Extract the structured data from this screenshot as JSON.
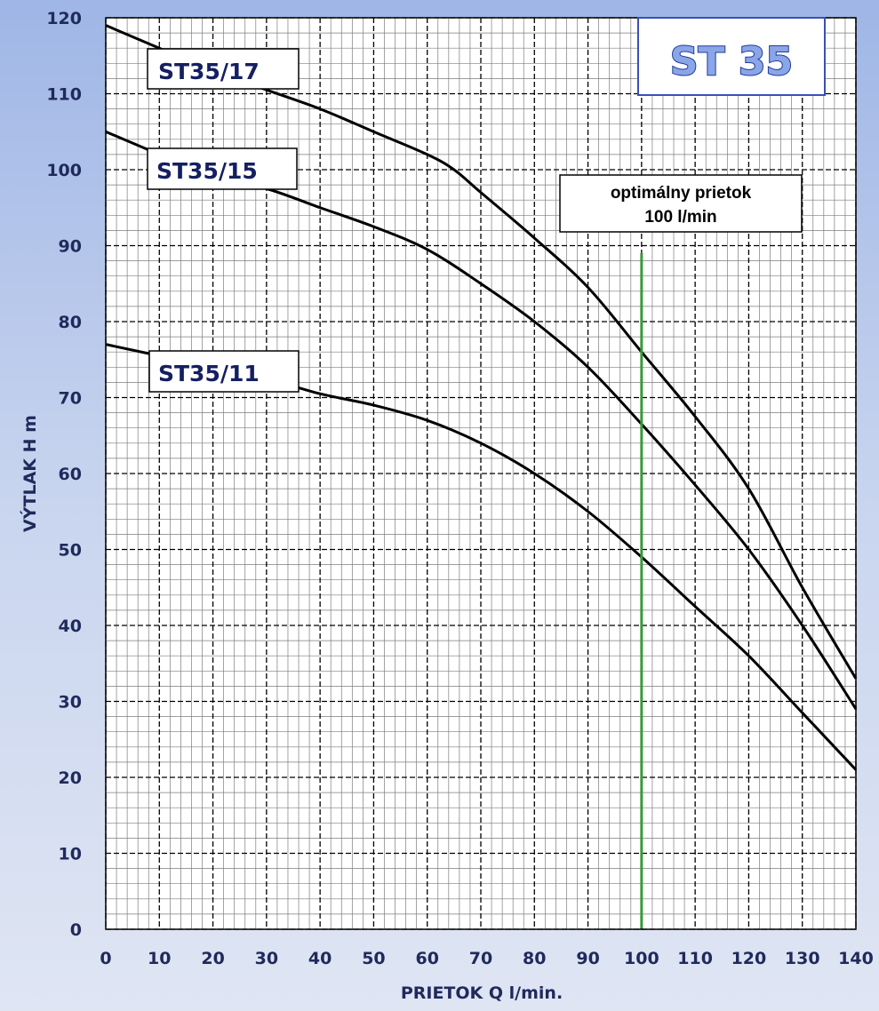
{
  "chart_data": {
    "type": "line",
    "title": "ST 35",
    "xlabel": "PRIETOK  Q  l/min.",
    "ylabel": "VÝTLAK  H  m",
    "xlim": [
      0,
      140
    ],
    "ylim": [
      0,
      120
    ],
    "xticks": [
      0,
      10,
      20,
      30,
      40,
      50,
      60,
      70,
      80,
      90,
      100,
      110,
      120,
      130,
      140
    ],
    "yticks": [
      0,
      10,
      20,
      30,
      40,
      50,
      60,
      70,
      80,
      90,
      100,
      110,
      120
    ],
    "grid": true,
    "series": [
      {
        "name": "ST35/17",
        "x": [
          0,
          10,
          20,
          30,
          40,
          50,
          60,
          65,
          70,
          80,
          90,
          100,
          110,
          120,
          130,
          140
        ],
        "values": [
          119,
          116,
          113,
          110.5,
          108,
          105,
          102,
          100,
          97,
          91,
          84.5,
          76,
          67.5,
          58,
          45,
          33
        ]
      },
      {
        "name": "ST35/15",
        "x": [
          0,
          10,
          20,
          30,
          40,
          50,
          60,
          70,
          80,
          90,
          100,
          110,
          120,
          130,
          140
        ],
        "values": [
          105,
          102,
          99,
          97.5,
          95,
          92.5,
          89.5,
          85,
          80,
          74,
          66.5,
          58.5,
          50,
          40,
          29
        ]
      },
      {
        "name": "ST35/11",
        "x": [
          0,
          10,
          20,
          30,
          40,
          50,
          60,
          70,
          80,
          90,
          100,
          110,
          120,
          130,
          140
        ],
        "values": [
          77,
          75.5,
          74,
          72.5,
          70.5,
          69,
          67,
          64,
          60,
          55,
          49,
          42.5,
          36,
          28.5,
          21
        ]
      }
    ],
    "annotations": [
      {
        "text_line1": "optimálny prietok",
        "text_line2": "100 l/min",
        "x": 100,
        "ymax": 89,
        "color": "#3a9a3a"
      }
    ],
    "colors": {
      "curve": "#000000",
      "grid": "#7d7d7d",
      "tick_text": "#1f2a5c",
      "label_text": "#142061",
      "optimal_line": "#3a9a3a"
    }
  }
}
